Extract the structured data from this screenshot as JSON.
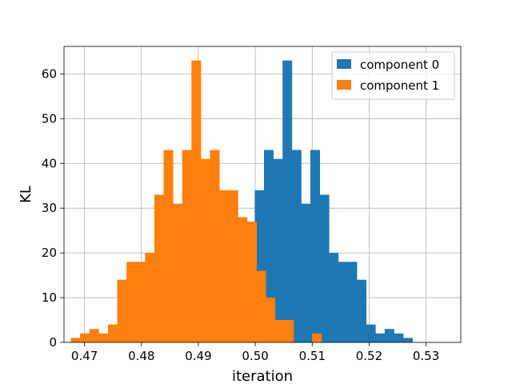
{
  "chart_data": {
    "type": "bar",
    "title": "",
    "xlabel": "iteration",
    "ylabel": "KL",
    "xlim": [
      0.4664,
      0.5361
    ],
    "ylim": [
      0,
      66.15
    ],
    "grid": true,
    "legend_position": "top-right",
    "x_ticks": [
      "0.47",
      "0.48",
      "0.49",
      "0.50",
      "0.51",
      "0.52",
      "0.53"
    ],
    "y_ticks": [
      "0",
      "10",
      "20",
      "30",
      "40",
      "50",
      "60"
    ],
    "series": [
      {
        "name": "component 0",
        "color": "#1f77b4",
        "bins_start": 0.4999,
        "bin_width": 0.00163,
        "counts": [
          34,
          43,
          41,
          63,
          43,
          31,
          43,
          33,
          20,
          18,
          18,
          14,
          4,
          2,
          3,
          2,
          1
        ]
      },
      {
        "name": "component 1",
        "color": "#ff7f0e",
        "bins_start": 0.4676,
        "bin_width": 0.00163,
        "counts": [
          1,
          2,
          3,
          2,
          4,
          14,
          18,
          18,
          20,
          33,
          43,
          31,
          43,
          63,
          41,
          43,
          34,
          34,
          28,
          27,
          16,
          10,
          5,
          5,
          0,
          0,
          2
        ]
      }
    ]
  }
}
